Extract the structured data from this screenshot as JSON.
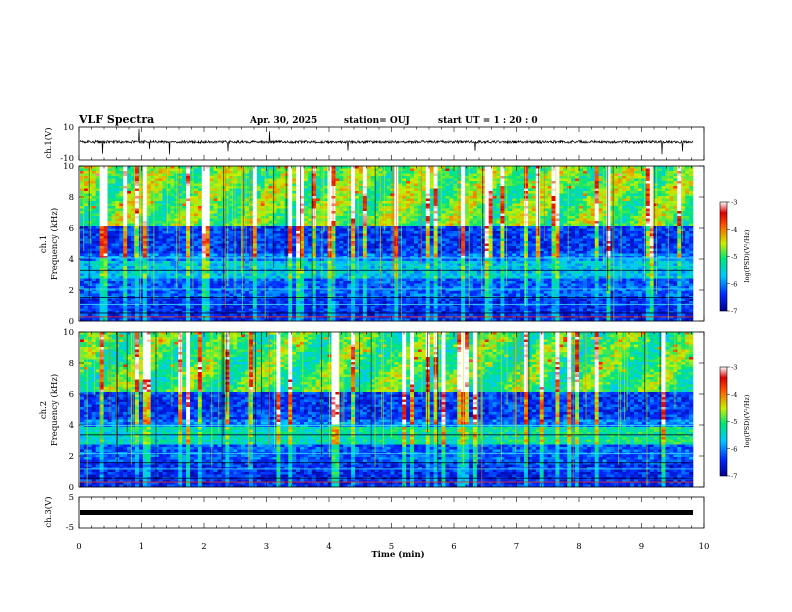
{
  "header": {
    "title": "VLF Spectra",
    "date": "Apr. 30, 2025",
    "station": "station= OUJ",
    "start": "start UT =  1 : 20 : 0"
  },
  "chart_data": {
    "type": "heatmap",
    "xlabel": "Time  (min)",
    "xlim": [
      0,
      10
    ],
    "x_ticks": [
      "0",
      "1",
      "2",
      "3",
      "4",
      "5",
      "6",
      "7",
      "8",
      "9",
      "10"
    ],
    "panels": [
      {
        "id": "ch1-wave",
        "ylabel": "ch.1(V)",
        "ylim": [
          -10,
          10
        ],
        "y_ticks": [
          "10",
          "-10"
        ]
      },
      {
        "id": "ch1-spec",
        "ylabel_line1": "ch.1",
        "ylabel_line2": "Frequency  (kHz)",
        "ylim": [
          0,
          10
        ],
        "y_ticks": [
          "0",
          "2",
          "4",
          "6",
          "8",
          "10"
        ],
        "colorbar": {
          "label": "log(PSD)(V²/Hz)",
          "ticks": [
            "-3",
            "-4",
            "-5",
            "-6",
            "-7"
          ],
          "range": [
            -7,
            -3
          ]
        }
      },
      {
        "id": "ch2-spec",
        "ylabel_line1": "ch.2",
        "ylabel_line2": "Frequency  (kHz)",
        "ylim": [
          0,
          10
        ],
        "y_ticks": [
          "0",
          "2",
          "4",
          "6",
          "8",
          "10"
        ],
        "colorbar": {
          "label": "log(PSD)(V²/Hz)",
          "ticks": [
            "-3",
            "-4",
            "-5",
            "-6",
            "-7"
          ],
          "range": [
            -7,
            -3
          ]
        }
      },
      {
        "id": "ch3-wave",
        "ylabel": "ch.3(V)",
        "ylim": [
          -5,
          5
        ],
        "y_ticks": [
          "5",
          "-5"
        ],
        "level": 0
      }
    ]
  }
}
